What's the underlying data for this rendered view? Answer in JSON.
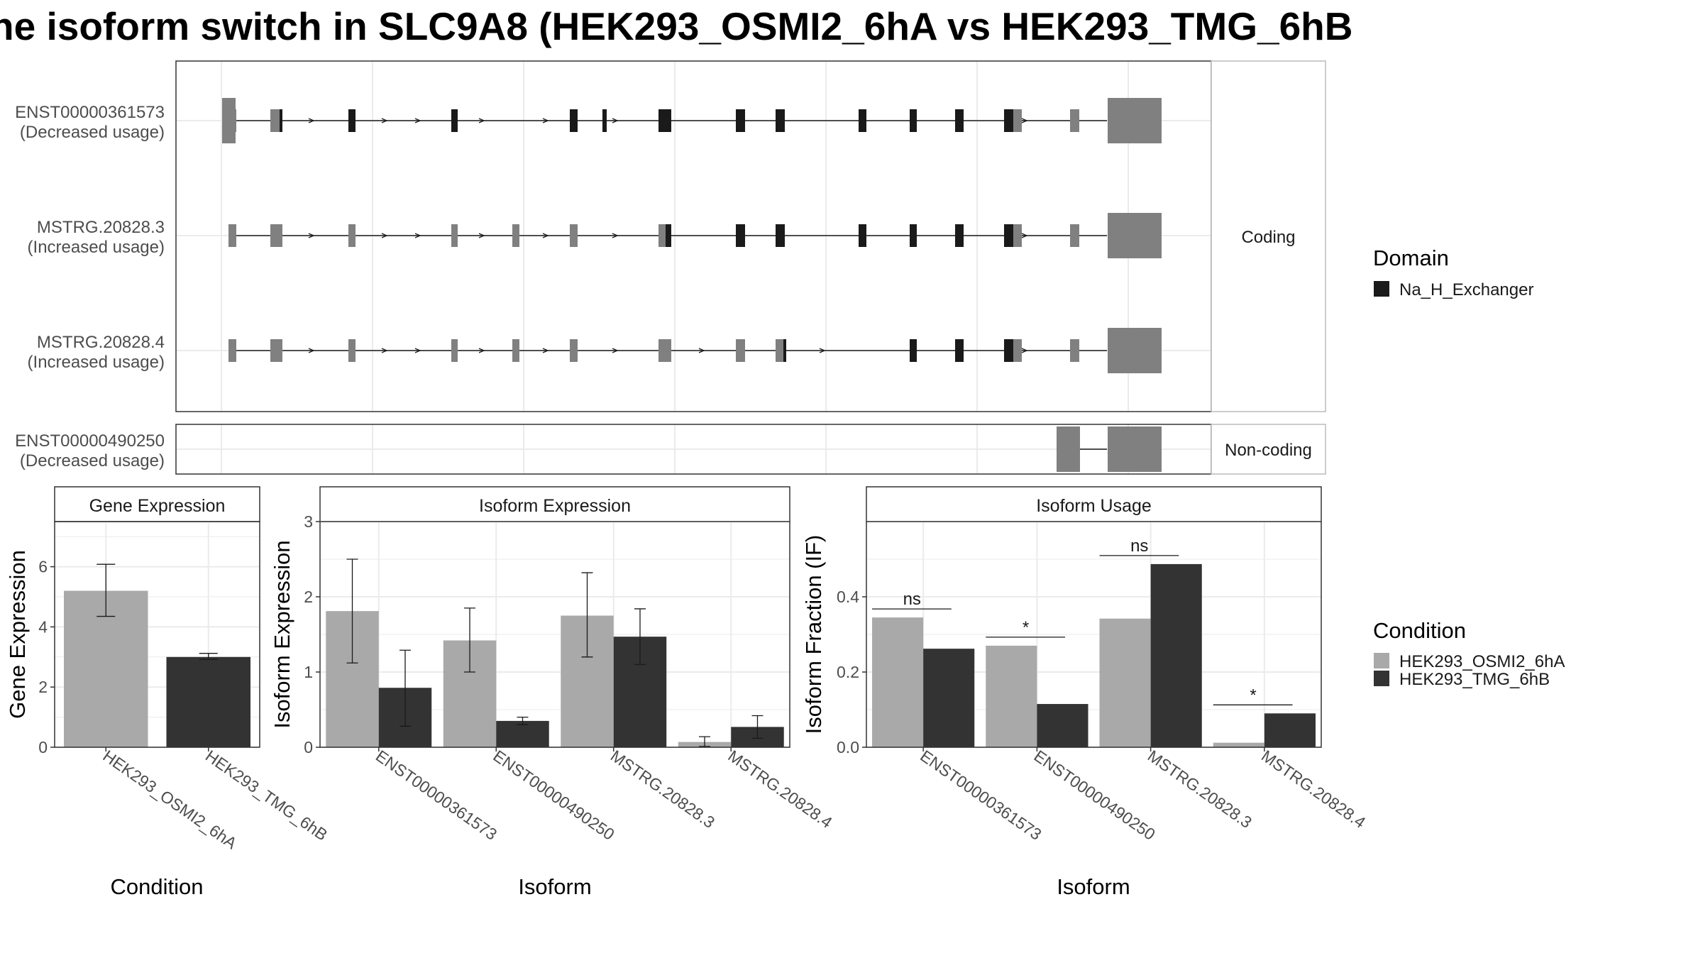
{
  "title": "ne isoform switch in SLC9A8 (HEK293_OSMI2_6hA vs HEK293_TMG_6hB",
  "colors": {
    "domain": "#1a1a1a",
    "utr": "#808080",
    "condA": "#a9a9a9",
    "condB": "#333333",
    "grid": "#ebebeb",
    "strip_bg": "#ffffff",
    "border": "#333333"
  },
  "transcripts": {
    "facets": [
      {
        "label": "Coding",
        "rows": [
          0,
          1,
          2
        ]
      },
      {
        "label": "Non-coding",
        "rows": [
          3
        ]
      }
    ],
    "rows": [
      {
        "id": "ENST00000361573",
        "usage": "(Decreased usage)"
      },
      {
        "id": "MSTRG.20828.3",
        "usage": "(Increased usage)"
      },
      {
        "id": "MSTRG.20828.4",
        "usage": "(Increased usage)"
      },
      {
        "id": "ENST00000490250",
        "usage": "(Decreased usage)"
      }
    ]
  },
  "legend_domain": {
    "title": "Domain",
    "items": [
      "Na_H_Exchanger"
    ]
  },
  "legend_condition": {
    "title": "Condition",
    "items": [
      "HEK293_OSMI2_6hA",
      "HEK293_TMG_6hB"
    ]
  },
  "chart_data": [
    {
      "type": "bar",
      "panel": "Gene Expression",
      "xlabel": "Condition",
      "ylabel": "Gene Expression",
      "ylim": [
        0,
        7.5
      ],
      "yticks": [
        0,
        2,
        4,
        6
      ],
      "categories": [
        "HEK293_OSMI2_6hA",
        "HEK293_TMG_6hB"
      ],
      "values": [
        5.2,
        3.0
      ],
      "errors": [
        [
          4.35,
          6.08
        ],
        [
          2.92,
          3.12
        ]
      ]
    },
    {
      "type": "bar",
      "panel": "Isoform Expression",
      "xlabel": "Isoform",
      "ylabel": "Isoform Expression",
      "ylim": [
        0,
        3.0
      ],
      "yticks": [
        0,
        1,
        2,
        3
      ],
      "categories": [
        "ENST00000361573",
        "ENST00000490250",
        "MSTRG.20828.3",
        "MSTRG.20828.4"
      ],
      "series": [
        {
          "name": "HEK293_OSMI2_6hA",
          "values": [
            1.81,
            1.42,
            1.75,
            0.07
          ],
          "errors": [
            [
              1.12,
              2.5
            ],
            [
              1.0,
              1.85
            ],
            [
              1.2,
              2.32
            ],
            [
              0.01,
              0.14
            ]
          ]
        },
        {
          "name": "HEK293_TMG_6hB",
          "values": [
            0.79,
            0.35,
            1.47,
            0.27
          ],
          "errors": [
            [
              0.28,
              1.29
            ],
            [
              0.3,
              0.4
            ],
            [
              1.1,
              1.84
            ],
            [
              0.12,
              0.42
            ]
          ]
        }
      ]
    },
    {
      "type": "bar",
      "panel": "Isoform Usage",
      "xlabel": "Isoform",
      "ylabel": "Isoform Fraction (IF)",
      "ylim": [
        0,
        0.6
      ],
      "yticks": [
        "0.0",
        "0.2",
        "0.4"
      ],
      "categories": [
        "ENST00000361573",
        "ENST00000490250",
        "MSTRG.20828.3",
        "MSTRG.20828.4"
      ],
      "series": [
        {
          "name": "HEK293_OSMI2_6hA",
          "values": [
            0.345,
            0.27,
            0.342,
            0.012
          ]
        },
        {
          "name": "HEK293_TMG_6hB",
          "values": [
            0.262,
            0.115,
            0.487,
            0.09
          ]
        }
      ],
      "significance": [
        "ns",
        "*",
        "ns",
        "*"
      ]
    }
  ]
}
